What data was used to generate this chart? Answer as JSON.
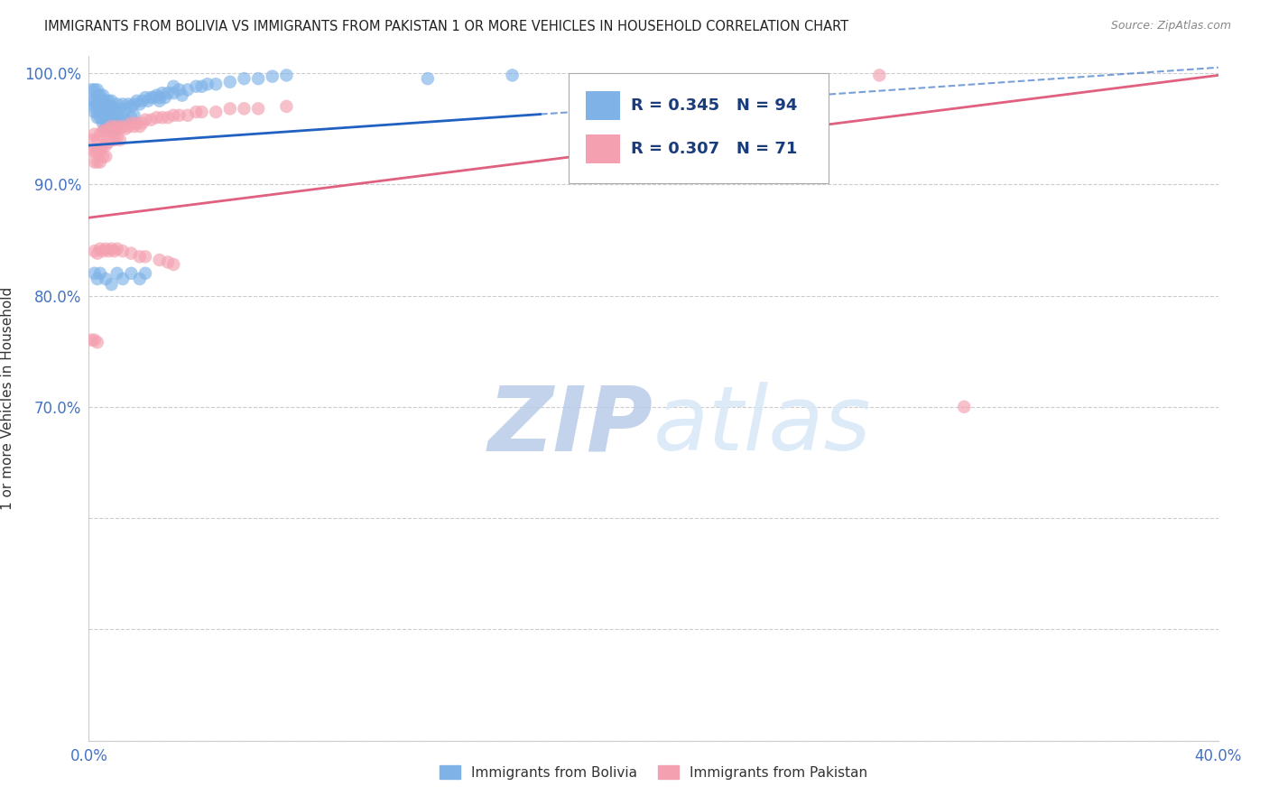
{
  "title": "IMMIGRANTS FROM BOLIVIA VS IMMIGRANTS FROM PAKISTAN 1 OR MORE VEHICLES IN HOUSEHOLD CORRELATION CHART",
  "source": "Source: ZipAtlas.com",
  "ylabel": "1 or more Vehicles in Household",
  "xlim": [
    0.0,
    0.4
  ],
  "ylim": [
    0.4,
    1.015
  ],
  "bolivia_color": "#7FB3E8",
  "pakistan_color": "#F4A0B0",
  "bolivia_line_color": "#2060C0",
  "pakistan_line_color": "#E06080",
  "bolivia_R": 0.345,
  "bolivia_N": 94,
  "pakistan_R": 0.307,
  "pakistan_N": 71,
  "legend_label_bolivia": "Immigrants from Bolivia",
  "legend_label_pakistan": "Immigrants from Pakistan",
  "watermark": "ZIPatlas",
  "watermark_color": "#C8D8F0",
  "bolivia_x": [
    0.001,
    0.001,
    0.002,
    0.002,
    0.002,
    0.002,
    0.003,
    0.003,
    0.003,
    0.003,
    0.003,
    0.003,
    0.004,
    0.004,
    0.004,
    0.004,
    0.004,
    0.005,
    0.005,
    0.005,
    0.005,
    0.005,
    0.005,
    0.006,
    0.006,
    0.006,
    0.006,
    0.006,
    0.006,
    0.007,
    0.007,
    0.007,
    0.007,
    0.007,
    0.008,
    0.008,
    0.008,
    0.008,
    0.009,
    0.009,
    0.009,
    0.01,
    0.01,
    0.01,
    0.011,
    0.011,
    0.012,
    0.012,
    0.013,
    0.013,
    0.014,
    0.015,
    0.015,
    0.016,
    0.016,
    0.017,
    0.018,
    0.019,
    0.02,
    0.021,
    0.022,
    0.023,
    0.024,
    0.025,
    0.026,
    0.027,
    0.028,
    0.03,
    0.032,
    0.033,
    0.035,
    0.038,
    0.04,
    0.042,
    0.045,
    0.05,
    0.055,
    0.06,
    0.065,
    0.07,
    0.002,
    0.003,
    0.004,
    0.006,
    0.008,
    0.01,
    0.012,
    0.015,
    0.018,
    0.02,
    0.025,
    0.03,
    0.12,
    0.15
  ],
  "bolivia_y": [
    0.975,
    0.985,
    0.97,
    0.975,
    0.965,
    0.985,
    0.97,
    0.98,
    0.96,
    0.975,
    0.965,
    0.985,
    0.97,
    0.975,
    0.96,
    0.98,
    0.965,
    0.97,
    0.975,
    0.96,
    0.98,
    0.965,
    0.955,
    0.97,
    0.96,
    0.975,
    0.955,
    0.965,
    0.95,
    0.97,
    0.96,
    0.975,
    0.955,
    0.965,
    0.97,
    0.96,
    0.975,
    0.955,
    0.968,
    0.958,
    0.948,
    0.972,
    0.962,
    0.952,
    0.968,
    0.958,
    0.972,
    0.962,
    0.968,
    0.958,
    0.972,
    0.97,
    0.96,
    0.972,
    0.962,
    0.975,
    0.972,
    0.975,
    0.978,
    0.975,
    0.978,
    0.978,
    0.98,
    0.978,
    0.982,
    0.978,
    0.982,
    0.982,
    0.985,
    0.98,
    0.985,
    0.988,
    0.988,
    0.99,
    0.99,
    0.992,
    0.995,
    0.995,
    0.997,
    0.998,
    0.82,
    0.815,
    0.82,
    0.815,
    0.81,
    0.82,
    0.815,
    0.82,
    0.815,
    0.82,
    0.975,
    0.988,
    0.995,
    0.998
  ],
  "pakistan_x": [
    0.001,
    0.001,
    0.002,
    0.002,
    0.002,
    0.003,
    0.003,
    0.003,
    0.004,
    0.004,
    0.004,
    0.005,
    0.005,
    0.005,
    0.006,
    0.006,
    0.006,
    0.007,
    0.007,
    0.008,
    0.008,
    0.009,
    0.009,
    0.01,
    0.01,
    0.011,
    0.011,
    0.012,
    0.013,
    0.014,
    0.015,
    0.016,
    0.017,
    0.018,
    0.019,
    0.02,
    0.022,
    0.024,
    0.026,
    0.028,
    0.03,
    0.032,
    0.035,
    0.038,
    0.04,
    0.045,
    0.05,
    0.055,
    0.06,
    0.07,
    0.002,
    0.003,
    0.004,
    0.005,
    0.006,
    0.007,
    0.008,
    0.009,
    0.01,
    0.012,
    0.015,
    0.018,
    0.02,
    0.025,
    0.028,
    0.03,
    0.001,
    0.002,
    0.003,
    0.28,
    0.31
  ],
  "pakistan_y": [
    0.94,
    0.93,
    0.945,
    0.93,
    0.92,
    0.94,
    0.93,
    0.92,
    0.945,
    0.93,
    0.92,
    0.948,
    0.935,
    0.925,
    0.948,
    0.935,
    0.925,
    0.95,
    0.938,
    0.952,
    0.94,
    0.95,
    0.94,
    0.952,
    0.942,
    0.95,
    0.94,
    0.952,
    0.95,
    0.952,
    0.955,
    0.952,
    0.955,
    0.952,
    0.955,
    0.958,
    0.958,
    0.96,
    0.96,
    0.96,
    0.962,
    0.962,
    0.962,
    0.965,
    0.965,
    0.965,
    0.968,
    0.968,
    0.968,
    0.97,
    0.84,
    0.838,
    0.842,
    0.84,
    0.842,
    0.84,
    0.842,
    0.84,
    0.842,
    0.84,
    0.838,
    0.835,
    0.835,
    0.832,
    0.83,
    0.828,
    0.76,
    0.76,
    0.758,
    0.998,
    0.7
  ]
}
